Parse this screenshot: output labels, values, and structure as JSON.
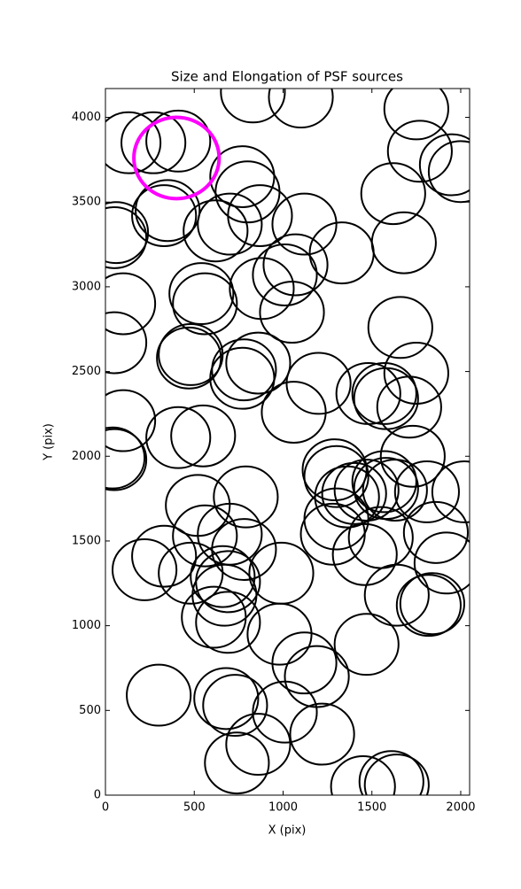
{
  "chart_data": {
    "type": "scatter",
    "title": "Size and Elongation of PSF sources",
    "x_label": "X (pix)",
    "y_label": "Y (pix)",
    "xlim": [
      0,
      2050
    ],
    "ylim": [
      0,
      4170
    ],
    "xticks": [
      0,
      500,
      1000,
      1500,
      2000
    ],
    "yticks": [
      0,
      500,
      1000,
      1500,
      2000,
      2500,
      3000,
      3500,
      4000
    ],
    "grid": false,
    "series": [
      {
        "color": "#000000",
        "radius": 180,
        "x": [
          830,
          1100,
          1750,
          130,
          270,
          410,
          1770,
          1950,
          2000,
          770,
          800,
          350,
          330,
          60,
          50,
          1620,
          870,
          1120,
          700,
          620,
          1680,
          1330,
          1070,
          1010,
          880,
          540,
          560,
          100,
          1050,
          50,
          1660,
          480,
          470,
          1750,
          860,
          780,
          770,
          1200,
          1480,
          1570,
          1580,
          1710,
          1060,
          100,
          410,
          550,
          40,
          50,
          1290,
          1300,
          1730,
          1570,
          1580,
          1470,
          1400,
          1360,
          1810,
          2020,
          1630,
          520,
          790,
          1300,
          1280,
          1550,
          1860,
          1920,
          1460,
          700,
          560,
          780,
          330,
          480,
          220,
          990,
          660,
          690,
          670,
          610,
          690,
          1640,
          1820,
          1840,
          980,
          1470,
          1120,
          1190,
          300,
          680,
          730,
          1010,
          1220,
          740,
          860,
          1450,
          1610,
          1640
        ],
        "values": [
          4150,
          4120,
          4050,
          3850,
          3850,
          3860,
          3800,
          3720,
          3680,
          3650,
          3560,
          3450,
          3420,
          3320,
          3290,
          3550,
          3420,
          3370,
          3370,
          3330,
          3260,
          3200,
          3130,
          3070,
          2990,
          2960,
          2900,
          2900,
          2850,
          2670,
          2760,
          2600,
          2580,
          2490,
          2550,
          2510,
          2460,
          2430,
          2370,
          2370,
          2340,
          2290,
          2260,
          2210,
          2110,
          2120,
          1990,
          1980,
          1920,
          1880,
          2000,
          1850,
          1810,
          1800,
          1780,
          1760,
          1790,
          1790,
          1800,
          1710,
          1760,
          1630,
          1540,
          1520,
          1550,
          1370,
          1420,
          1540,
          1530,
          1450,
          1410,
          1310,
          1330,
          1310,
          1290,
          1260,
          1180,
          1050,
          1020,
          1180,
          1120,
          1130,
          950,
          890,
          780,
          700,
          590,
          570,
          530,
          490,
          360,
          190,
          300,
          50,
          80,
          60
        ]
      },
      {
        "color": "#ff00ff",
        "radius": 240,
        "x": [
          400
        ],
        "values": [
          3760
        ]
      }
    ]
  }
}
